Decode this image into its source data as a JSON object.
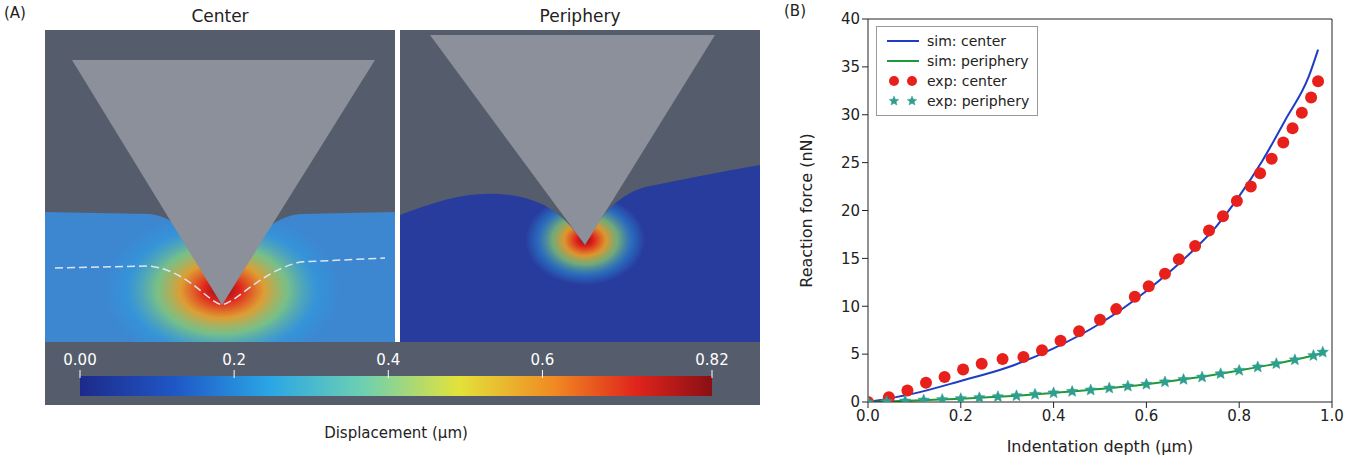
{
  "chart_data": [
    {
      "type": "image",
      "panel_label": "(A)",
      "panel_titles": [
        "Center",
        "Periphery"
      ],
      "colorbar": {
        "label": "Displacement (μm)",
        "range": [
          0,
          0.82
        ],
        "ticks": [
          {
            "value": 0,
            "label": "0.00"
          },
          0.2,
          0.4,
          0.6,
          0.82
        ]
      }
    },
    {
      "type": "line",
      "panel_label": "(B)",
      "xlabel": "Indentation depth (μm)",
      "ylabel": "Reaction force (nN)",
      "xlim": [
        0,
        1
      ],
      "xticks": [
        {
          "value": 0,
          "label": "0.0"
        },
        0.2,
        0.4,
        0.6,
        0.8,
        {
          "value": 1,
          "label": "1.0"
        }
      ],
      "ylim": [
        0,
        40
      ],
      "yticks": [
        0,
        5,
        10,
        15,
        20,
        25,
        30,
        35,
        40
      ],
      "grid": false,
      "legend": "upper left",
      "series": [
        {
          "name": "sim: center",
          "type": "line",
          "color": "#1f3dc4",
          "line_style": "solid",
          "x": [
            0,
            0.1,
            0.2,
            0.3,
            0.4,
            0.5,
            0.6,
            0.7,
            0.75,
            0.8,
            0.85,
            0.9,
            0.95,
            0.97
          ],
          "values": [
            0,
            0.9,
            2.2,
            3.6,
            5.6,
            8.2,
            11.6,
            15.8,
            18.3,
            21.5,
            25.2,
            29.5,
            34.0,
            36.8
          ]
        },
        {
          "name": "sim: periphery",
          "type": "line",
          "color": "#1e9a3a",
          "line_style": "solid",
          "x": [
            0,
            0.1,
            0.2,
            0.3,
            0.4,
            0.5,
            0.6,
            0.7,
            0.8,
            0.9,
            0.98
          ],
          "values": [
            0,
            0.15,
            0.35,
            0.6,
            0.95,
            1.35,
            1.85,
            2.5,
            3.3,
            4.2,
            5.1
          ]
        },
        {
          "name": "exp: center",
          "type": "scatter",
          "color": "#e8201c",
          "marker": "circle",
          "x": [
            0,
            0.045,
            0.085,
            0.125,
            0.165,
            0.205,
            0.245,
            0.29,
            0.335,
            0.375,
            0.415,
            0.455,
            0.5,
            0.535,
            0.575,
            0.605,
            0.64,
            0.67,
            0.705,
            0.735,
            0.765,
            0.795,
            0.825,
            0.845,
            0.87,
            0.895,
            0.915,
            0.935,
            0.955,
            0.97
          ],
          "values": [
            0,
            0.5,
            1.2,
            2.0,
            2.6,
            3.4,
            4.0,
            4.5,
            4.7,
            5.4,
            6.4,
            7.4,
            8.6,
            9.7,
            11.0,
            12.1,
            13.4,
            14.9,
            16.3,
            17.9,
            19.4,
            21.0,
            22.5,
            23.9,
            25.4,
            27.1,
            28.6,
            30.2,
            31.8,
            33.5
          ]
        },
        {
          "name": "exp: periphery",
          "type": "scatter",
          "color": "#2e9e8e",
          "marker": "star",
          "x": [
            0,
            0.04,
            0.08,
            0.12,
            0.16,
            0.2,
            0.24,
            0.28,
            0.32,
            0.36,
            0.4,
            0.44,
            0.48,
            0.52,
            0.56,
            0.6,
            0.64,
            0.68,
            0.72,
            0.76,
            0.8,
            0.84,
            0.88,
            0.92,
            0.96,
            0.98
          ],
          "values": [
            0,
            0.05,
            0.1,
            0.2,
            0.25,
            0.35,
            0.45,
            0.55,
            0.65,
            0.8,
            0.95,
            1.1,
            1.25,
            1.45,
            1.65,
            1.85,
            2.1,
            2.35,
            2.6,
            2.95,
            3.3,
            3.65,
            4.0,
            4.4,
            4.85,
            5.2
          ]
        }
      ]
    }
  ]
}
